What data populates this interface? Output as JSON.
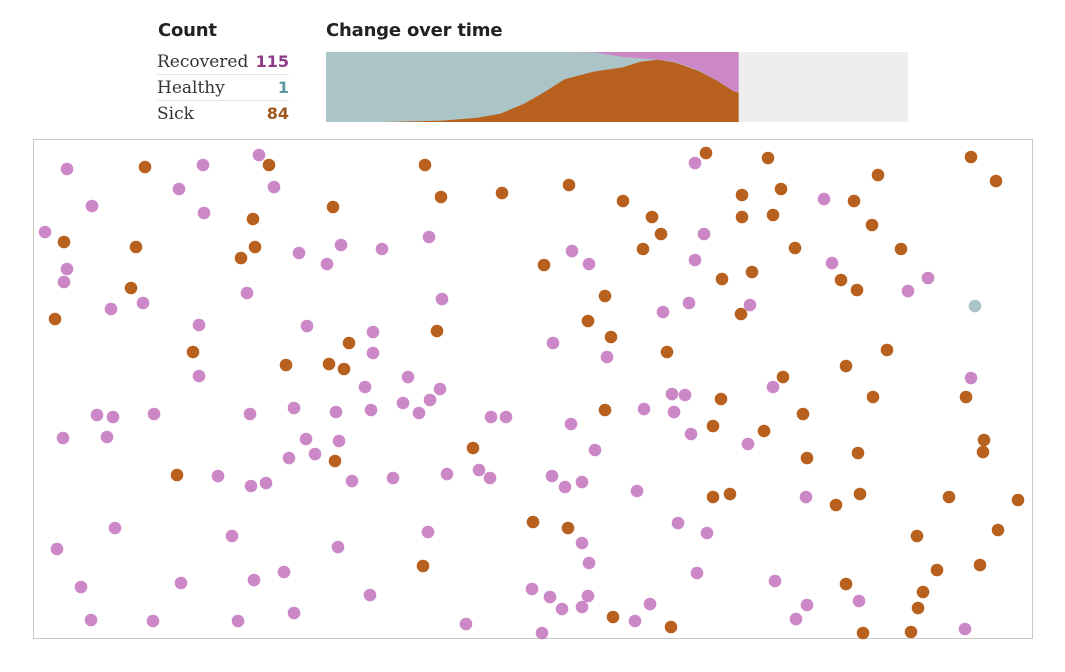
{
  "colors": {
    "recovered": "#cc88c6",
    "recovered_text": "#8e3a86",
    "healthy": "#abc4c8",
    "healthy_text": "#5d9aa3",
    "sick": "#b8611e",
    "sick_text": "#a0561b",
    "remaining": "#eeeeee"
  },
  "count": {
    "title": "Count",
    "rows": [
      {
        "label": "Recovered",
        "value": "115",
        "status": "recovered"
      },
      {
        "label": "Healthy",
        "value": "1",
        "status": "healthy"
      },
      {
        "label": "Sick",
        "value": "84",
        "status": "sick"
      }
    ]
  },
  "change_over_time": {
    "title": "Change over time",
    "elapsed_fraction": 0.709,
    "samples": [
      {
        "t": 0.0,
        "sick": 0.0,
        "recovered": 0.0
      },
      {
        "t": 0.1,
        "sick": 0.0,
        "recovered": 0.0
      },
      {
        "t": 0.12,
        "sick": 0.005,
        "recovered": 0.0
      },
      {
        "t": 0.2,
        "sick": 0.02,
        "recovered": 0.0
      },
      {
        "t": 0.26,
        "sick": 0.06,
        "recovered": 0.0
      },
      {
        "t": 0.3,
        "sick": 0.12,
        "recovered": 0.0
      },
      {
        "t": 0.34,
        "sick": 0.26,
        "recovered": 0.0
      },
      {
        "t": 0.37,
        "sick": 0.4,
        "recovered": 0.0
      },
      {
        "t": 0.41,
        "sick": 0.61,
        "recovered": 0.0
      },
      {
        "t": 0.46,
        "sick": 0.72,
        "recovered": 0.005
      },
      {
        "t": 0.51,
        "sick": 0.78,
        "recovered": 0.07
      },
      {
        "t": 0.54,
        "sick": 0.86,
        "recovered": 0.09
      },
      {
        "t": 0.57,
        "sick": 0.89,
        "recovered": 0.11
      },
      {
        "t": 0.6,
        "sick": 0.85,
        "recovered": 0.14
      },
      {
        "t": 0.64,
        "sick": 0.73,
        "recovered": 0.26
      },
      {
        "t": 0.67,
        "sick": 0.6,
        "recovered": 0.4
      },
      {
        "t": 0.7,
        "sick": 0.44,
        "recovered": 0.56
      },
      {
        "t": 0.709,
        "sick": 0.42,
        "recovered": 0.575
      }
    ]
  },
  "board_dots": [
    [
      66,
      168,
      "r"
    ],
    [
      144,
      166,
      "s"
    ],
    [
      202,
      164,
      "r"
    ],
    [
      258,
      154,
      "r"
    ],
    [
      268,
      164,
      "s"
    ],
    [
      178,
      188,
      "r"
    ],
    [
      273,
      186,
      "r"
    ],
    [
      91,
      205,
      "r"
    ],
    [
      203,
      212,
      "r"
    ],
    [
      252,
      218,
      "s"
    ],
    [
      44,
      231,
      "r"
    ],
    [
      63,
      241,
      "s"
    ],
    [
      135,
      246,
      "s"
    ],
    [
      254,
      246,
      "s"
    ],
    [
      240,
      257,
      "s"
    ],
    [
      66,
      268,
      "r"
    ],
    [
      63,
      281,
      "r"
    ],
    [
      130,
      287,
      "s"
    ],
    [
      246,
      292,
      "r"
    ],
    [
      110,
      308,
      "r"
    ],
    [
      142,
      302,
      "r"
    ],
    [
      54,
      318,
      "s"
    ],
    [
      198,
      324,
      "r"
    ],
    [
      192,
      351,
      "s"
    ],
    [
      198,
      375,
      "r"
    ],
    [
      96,
      414,
      "r"
    ],
    [
      112,
      416,
      "r"
    ],
    [
      153,
      413,
      "r"
    ],
    [
      62,
      437,
      "r"
    ],
    [
      106,
      436,
      "r"
    ],
    [
      176,
      474,
      "s"
    ],
    [
      217,
      475,
      "r"
    ],
    [
      250,
      485,
      "r"
    ],
    [
      265,
      482,
      "r"
    ],
    [
      114,
      527,
      "r"
    ],
    [
      56,
      548,
      "r"
    ],
    [
      231,
      535,
      "r"
    ],
    [
      80,
      586,
      "r"
    ],
    [
      180,
      582,
      "r"
    ],
    [
      253,
      579,
      "r"
    ],
    [
      283,
      571,
      "r"
    ],
    [
      90,
      619,
      "r"
    ],
    [
      152,
      620,
      "r"
    ],
    [
      237,
      620,
      "r"
    ],
    [
      293,
      612,
      "r"
    ],
    [
      424,
      164,
      "s"
    ],
    [
      332,
      206,
      "s"
    ],
    [
      440,
      196,
      "s"
    ],
    [
      501,
      192,
      "s"
    ],
    [
      428,
      236,
      "r"
    ],
    [
      340,
      244,
      "r"
    ],
    [
      381,
      248,
      "r"
    ],
    [
      298,
      252,
      "r"
    ],
    [
      326,
      263,
      "r"
    ],
    [
      441,
      298,
      "r"
    ],
    [
      306,
      325,
      "r"
    ],
    [
      372,
      331,
      "r"
    ],
    [
      436,
      330,
      "s"
    ],
    [
      348,
      342,
      "s"
    ],
    [
      372,
      352,
      "r"
    ],
    [
      285,
      364,
      "s"
    ],
    [
      328,
      363,
      "s"
    ],
    [
      343,
      368,
      "s"
    ],
    [
      407,
      376,
      "r"
    ],
    [
      364,
      386,
      "r"
    ],
    [
      439,
      388,
      "r"
    ],
    [
      429,
      399,
      "r"
    ],
    [
      249,
      413,
      "r"
    ],
    [
      293,
      407,
      "r"
    ],
    [
      335,
      411,
      "r"
    ],
    [
      370,
      409,
      "r"
    ],
    [
      402,
      402,
      "r"
    ],
    [
      418,
      412,
      "r"
    ],
    [
      305,
      438,
      "r"
    ],
    [
      338,
      440,
      "r"
    ],
    [
      314,
      453,
      "r"
    ],
    [
      288,
      457,
      "r"
    ],
    [
      334,
      460,
      "s"
    ],
    [
      351,
      480,
      "r"
    ],
    [
      392,
      477,
      "r"
    ],
    [
      446,
      473,
      "r"
    ],
    [
      427,
      531,
      "r"
    ],
    [
      337,
      546,
      "r"
    ],
    [
      422,
      565,
      "s"
    ],
    [
      369,
      594,
      "r"
    ],
    [
      465,
      623,
      "r"
    ],
    [
      472,
      447,
      "s"
    ],
    [
      478,
      469,
      "r"
    ],
    [
      489,
      477,
      "r"
    ],
    [
      490,
      416,
      "r"
    ],
    [
      505,
      416,
      "r"
    ],
    [
      568,
      184,
      "s"
    ],
    [
      543,
      264,
      "s"
    ],
    [
      571,
      250,
      "r"
    ],
    [
      588,
      263,
      "r"
    ],
    [
      604,
      295,
      "s"
    ],
    [
      587,
      320,
      "s"
    ],
    [
      610,
      336,
      "s"
    ],
    [
      552,
      342,
      "r"
    ],
    [
      606,
      356,
      "r"
    ],
    [
      570,
      423,
      "r"
    ],
    [
      594,
      449,
      "r"
    ],
    [
      604,
      409,
      "s"
    ],
    [
      551,
      475,
      "r"
    ],
    [
      564,
      486,
      "r"
    ],
    [
      581,
      481,
      "r"
    ],
    [
      532,
      521,
      "s"
    ],
    [
      567,
      527,
      "s"
    ],
    [
      581,
      542,
      "r"
    ],
    [
      588,
      562,
      "r"
    ],
    [
      531,
      588,
      "r"
    ],
    [
      549,
      596,
      "r"
    ],
    [
      587,
      595,
      "r"
    ],
    [
      561,
      608,
      "r"
    ],
    [
      581,
      606,
      "r"
    ],
    [
      612,
      616,
      "s"
    ],
    [
      541,
      632,
      "r"
    ],
    [
      634,
      620,
      "r"
    ],
    [
      649,
      603,
      "r"
    ],
    [
      670,
      626,
      "s"
    ],
    [
      622,
      200,
      "s"
    ],
    [
      651,
      216,
      "s"
    ],
    [
      660,
      233,
      "s"
    ],
    [
      642,
      248,
      "s"
    ],
    [
      662,
      311,
      "r"
    ],
    [
      688,
      302,
      "r"
    ],
    [
      666,
      351,
      "s"
    ],
    [
      643,
      408,
      "r"
    ],
    [
      671,
      393,
      "r"
    ],
    [
      684,
      394,
      "r"
    ],
    [
      673,
      411,
      "r"
    ],
    [
      690,
      433,
      "r"
    ],
    [
      636,
      490,
      "r"
    ],
    [
      677,
      522,
      "r"
    ],
    [
      706,
      532,
      "r"
    ],
    [
      696,
      572,
      "r"
    ],
    [
      694,
      162,
      "r"
    ],
    [
      705,
      152,
      "s"
    ],
    [
      767,
      157,
      "s"
    ],
    [
      741,
      194,
      "s"
    ],
    [
      780,
      188,
      "s"
    ],
    [
      741,
      216,
      "s"
    ],
    [
      772,
      214,
      "s"
    ],
    [
      703,
      233,
      "r"
    ],
    [
      694,
      259,
      "r"
    ],
    [
      721,
      278,
      "s"
    ],
    [
      751,
      271,
      "s"
    ],
    [
      749,
      304,
      "r"
    ],
    [
      740,
      313,
      "s"
    ],
    [
      794,
      247,
      "s"
    ],
    [
      823,
      198,
      "r"
    ],
    [
      853,
      200,
      "s"
    ],
    [
      877,
      174,
      "s"
    ],
    [
      871,
      224,
      "s"
    ],
    [
      900,
      248,
      "s"
    ],
    [
      831,
      262,
      "r"
    ],
    [
      840,
      279,
      "s"
    ],
    [
      856,
      289,
      "s"
    ],
    [
      907,
      290,
      "r"
    ],
    [
      927,
      277,
      "r"
    ],
    [
      970,
      156,
      "s"
    ],
    [
      995,
      180,
      "s"
    ],
    [
      974,
      305,
      "h"
    ],
    [
      886,
      349,
      "s"
    ],
    [
      845,
      365,
      "s"
    ],
    [
      782,
      376,
      "s"
    ],
    [
      772,
      386,
      "r"
    ],
    [
      720,
      398,
      "s"
    ],
    [
      802,
      413,
      "s"
    ],
    [
      763,
      430,
      "s"
    ],
    [
      712,
      425,
      "s"
    ],
    [
      747,
      443,
      "r"
    ],
    [
      806,
      457,
      "s"
    ],
    [
      857,
      452,
      "s"
    ],
    [
      872,
      396,
      "s"
    ],
    [
      970,
      377,
      "r"
    ],
    [
      965,
      396,
      "s"
    ],
    [
      983,
      439,
      "s"
    ],
    [
      982,
      451,
      "s"
    ],
    [
      712,
      496,
      "s"
    ],
    [
      729,
      493,
      "s"
    ],
    [
      805,
      496,
      "r"
    ],
    [
      835,
      504,
      "s"
    ],
    [
      859,
      493,
      "s"
    ],
    [
      948,
      496,
      "s"
    ],
    [
      1017,
      499,
      "s"
    ],
    [
      916,
      535,
      "s"
    ],
    [
      997,
      529,
      "s"
    ],
    [
      936,
      569,
      "s"
    ],
    [
      979,
      564,
      "s"
    ],
    [
      774,
      580,
      "r"
    ],
    [
      845,
      583,
      "s"
    ],
    [
      922,
      591,
      "s"
    ],
    [
      806,
      604,
      "r"
    ],
    [
      858,
      600,
      "r"
    ],
    [
      917,
      607,
      "s"
    ],
    [
      795,
      618,
      "r"
    ],
    [
      862,
      632,
      "s"
    ],
    [
      910,
      631,
      "s"
    ],
    [
      964,
      628,
      "r"
    ]
  ]
}
